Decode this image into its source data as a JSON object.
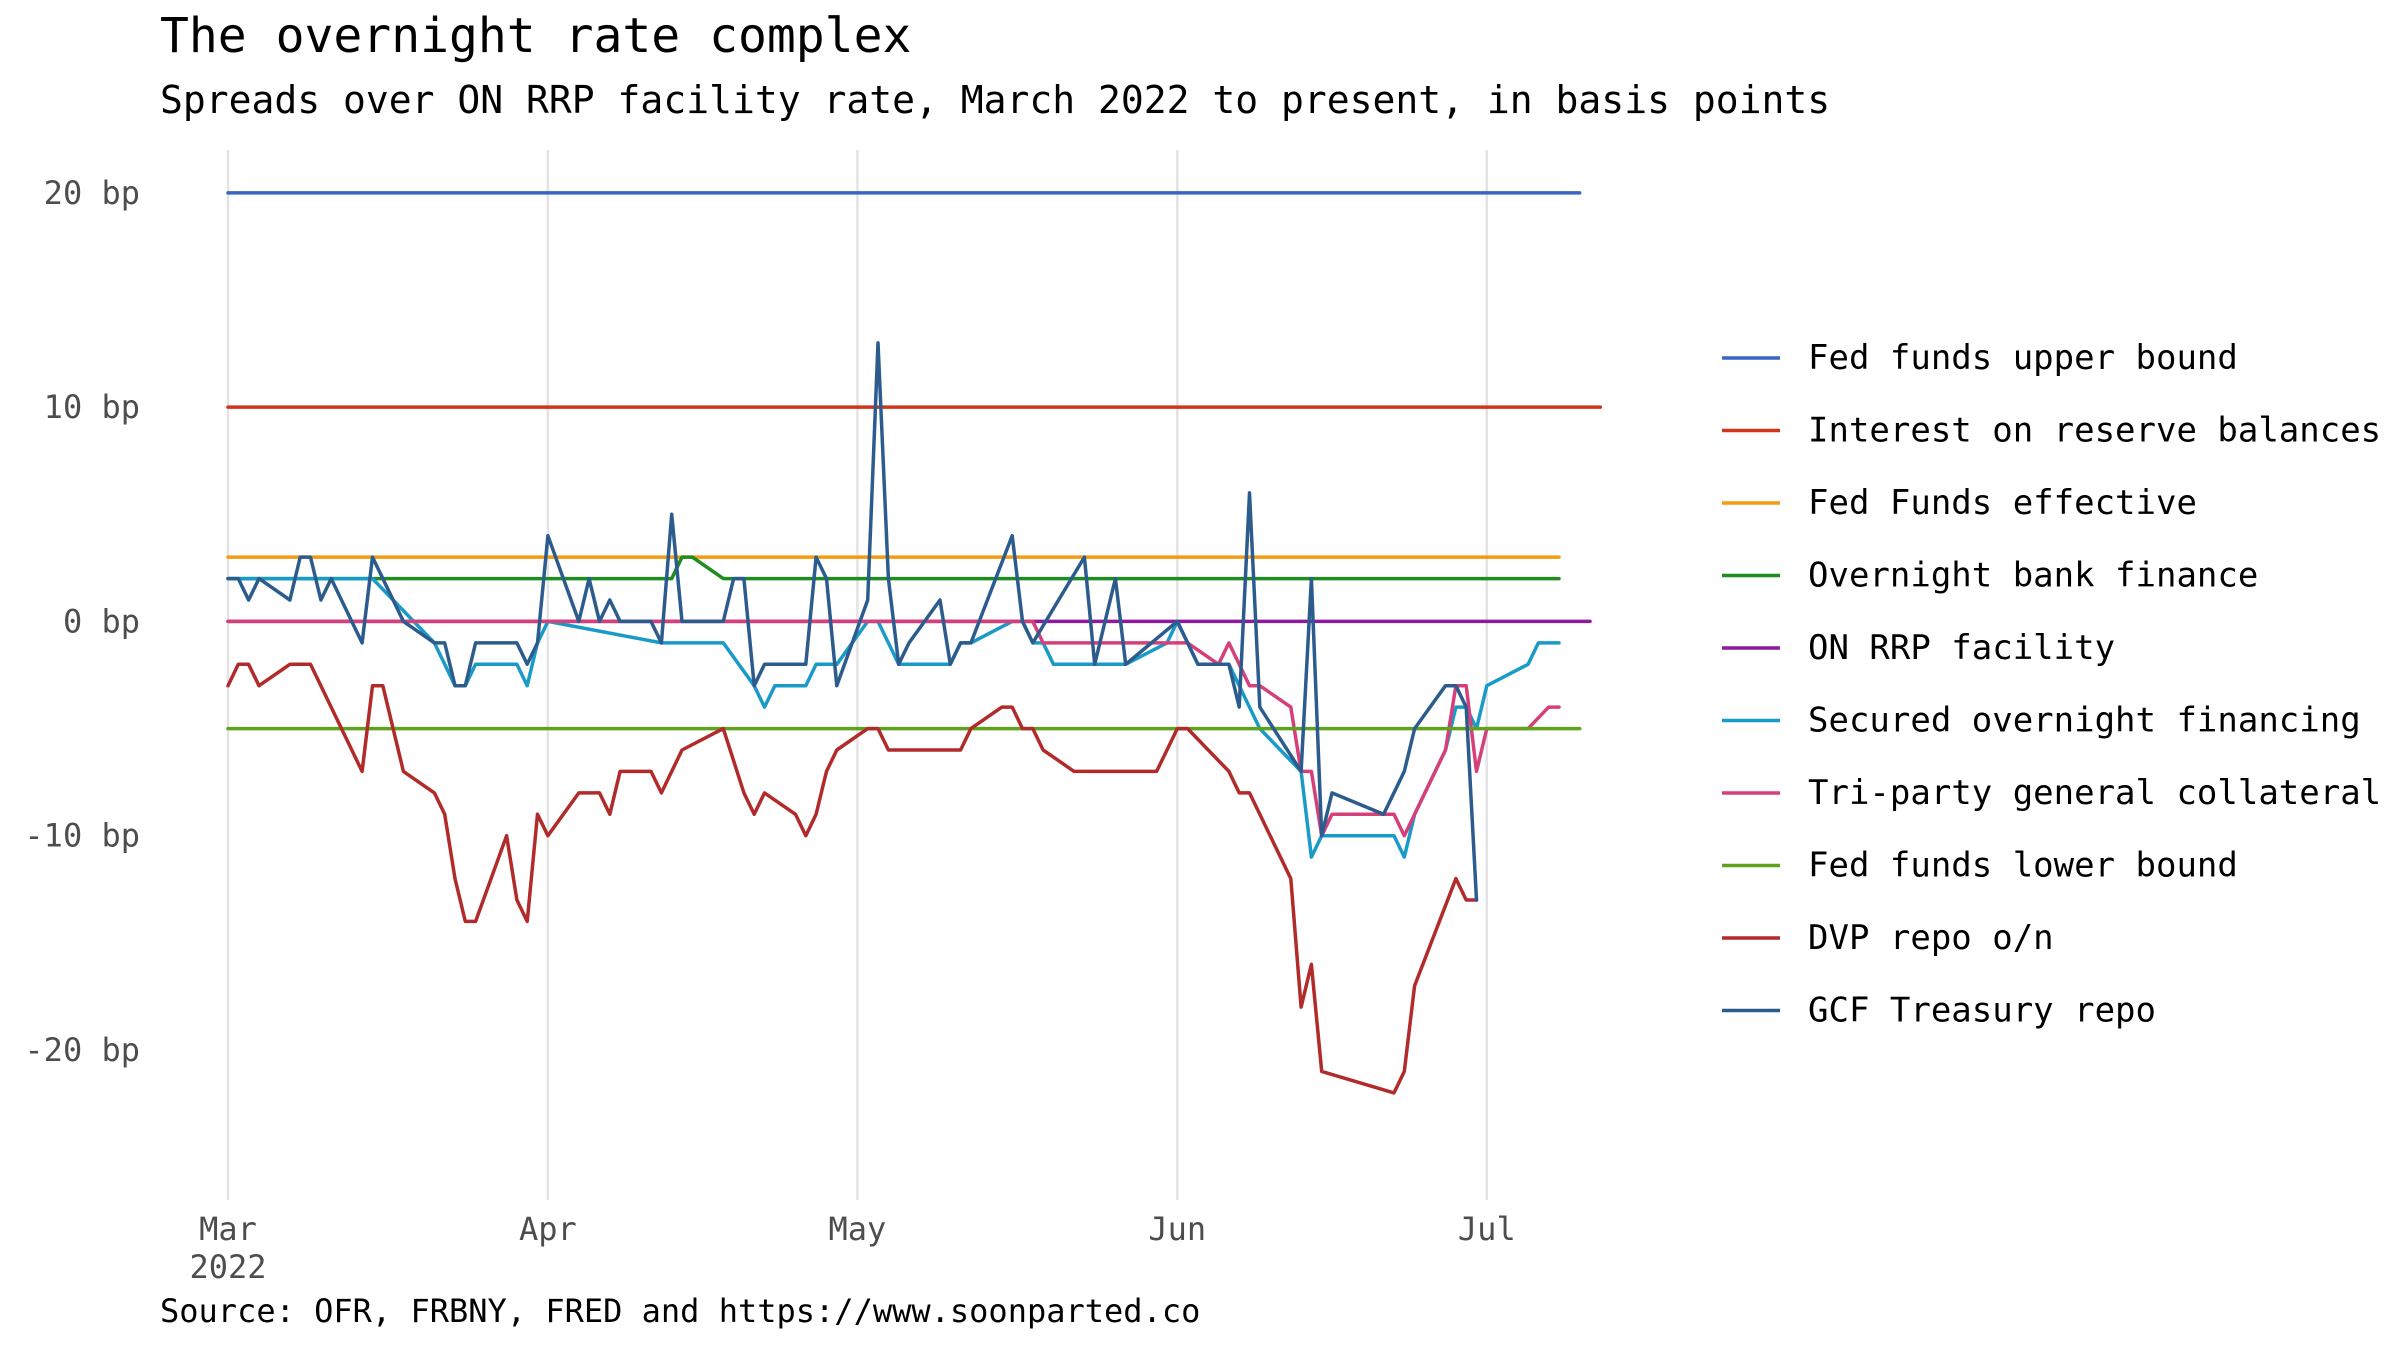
{
  "title": "The overnight rate complex",
  "subtitle": "Spreads over ON RRP facility rate, March 2022 to present, in basis points",
  "source": "Source: OFR, FRBNY, FRED and https://www.soonparted.co",
  "chart_data": {
    "type": "line",
    "title": "The overnight rate complex",
    "subtitle": "Spreads over ON RRP facility rate, March 2022 to present, in basis points",
    "xlabel": "",
    "ylabel": "",
    "x_axis": {
      "type": "date",
      "range": [
        "2022-03-01",
        "2022-07-11"
      ],
      "ticks": [
        {
          "date": "2022-03-01",
          "label": "Mar",
          "sublabel": "2022"
        },
        {
          "date": "2022-04-01",
          "label": "Apr",
          "sublabel": ""
        },
        {
          "date": "2022-05-01",
          "label": "May",
          "sublabel": ""
        },
        {
          "date": "2022-06-01",
          "label": "Jun",
          "sublabel": ""
        },
        {
          "date": "2022-07-01",
          "label": "Jul",
          "sublabel": ""
        }
      ]
    },
    "y_axis": {
      "range": [
        -27,
        22
      ],
      "ticks": [
        {
          "value": 20,
          "label": "20 bp"
        },
        {
          "value": 10,
          "label": "10 bp"
        },
        {
          "value": 0,
          "label": "0 bp"
        },
        {
          "value": -10,
          "label": "-10 bp"
        },
        {
          "value": -20,
          "label": "-20 bp"
        }
      ]
    },
    "grid": {
      "vertical": true,
      "horizontal": false
    },
    "legend_position": "right",
    "series": [
      {
        "name": "Fed funds upper bound",
        "color": "#3a66c4",
        "points": [
          [
            "2022-03-01",
            20
          ],
          [
            "2022-07-10",
            20
          ]
        ]
      },
      {
        "name": "Interest on reserve balances",
        "color": "#d1351b",
        "points": [
          [
            "2022-03-01",
            10
          ],
          [
            "2022-07-12",
            10
          ]
        ]
      },
      {
        "name": "Fed Funds effective",
        "color": "#f39c12",
        "points": [
          [
            "2022-03-01",
            3
          ],
          [
            "2022-07-08",
            3
          ]
        ]
      },
      {
        "name": "Overnight bank finance",
        "color": "#1e8c1e",
        "points": [
          [
            "2022-03-01",
            2
          ],
          [
            "2022-04-13",
            2
          ],
          [
            "2022-04-14",
            3
          ],
          [
            "2022-04-15",
            3
          ],
          [
            "2022-04-18",
            2
          ],
          [
            "2022-07-08",
            2
          ]
        ]
      },
      {
        "name": "ON RRP facility",
        "color": "#8e1a9c",
        "points": [
          [
            "2022-03-01",
            0
          ],
          [
            "2022-07-11",
            0
          ]
        ]
      },
      {
        "name": "Secured overnight financing",
        "color": "#1a9bc7",
        "points": [
          [
            "2022-03-01",
            2
          ],
          [
            "2022-03-15",
            2
          ],
          [
            "2022-03-21",
            -1
          ],
          [
            "2022-03-22",
            -2
          ],
          [
            "2022-03-23",
            -3
          ],
          [
            "2022-03-24",
            -3
          ],
          [
            "2022-03-25",
            -2
          ],
          [
            "2022-03-29",
            -2
          ],
          [
            "2022-03-30",
            -3
          ],
          [
            "2022-03-31",
            -1
          ],
          [
            "2022-04-01",
            0
          ],
          [
            "2022-04-12",
            -1
          ],
          [
            "2022-04-18",
            -1
          ],
          [
            "2022-04-21",
            -3
          ],
          [
            "2022-04-22",
            -4
          ],
          [
            "2022-04-23",
            -3
          ],
          [
            "2022-04-26",
            -3
          ],
          [
            "2022-04-27",
            -2
          ],
          [
            "2022-04-29",
            -2
          ],
          [
            "2022-05-02",
            0
          ],
          [
            "2022-05-03",
            0
          ],
          [
            "2022-05-04",
            -1
          ],
          [
            "2022-05-05",
            -2
          ],
          [
            "2022-05-10",
            -2
          ],
          [
            "2022-05-11",
            -1
          ],
          [
            "2022-05-12",
            -1
          ],
          [
            "2022-05-16",
            0
          ],
          [
            "2022-05-17",
            0
          ],
          [
            "2022-05-18",
            -1
          ],
          [
            "2022-05-19",
            -1
          ],
          [
            "2022-05-20",
            -2
          ],
          [
            "2022-05-27",
            -2
          ],
          [
            "2022-05-31",
            -1
          ],
          [
            "2022-06-01",
            0
          ],
          [
            "2022-06-02",
            -1
          ],
          [
            "2022-06-03",
            -2
          ],
          [
            "2022-06-06",
            -2
          ],
          [
            "2022-06-07",
            -3
          ],
          [
            "2022-06-09",
            -5
          ],
          [
            "2022-06-13",
            -7
          ],
          [
            "2022-06-14",
            -11
          ],
          [
            "2022-06-15",
            -10
          ],
          [
            "2022-06-22",
            -10
          ],
          [
            "2022-06-23",
            -11
          ],
          [
            "2022-06-24",
            -9
          ],
          [
            "2022-06-27",
            -6
          ],
          [
            "2022-06-28",
            -4
          ],
          [
            "2022-06-29",
            -4
          ],
          [
            "2022-06-30",
            -5
          ],
          [
            "2022-07-01",
            -3
          ],
          [
            "2022-07-05",
            -2
          ],
          [
            "2022-07-06",
            -1
          ],
          [
            "2022-07-08",
            -1
          ]
        ]
      },
      {
        "name": "Tri-party general collateral",
        "color": "#d6407a",
        "points": [
          [
            "2022-03-01",
            0
          ],
          [
            "2022-05-18",
            0
          ],
          [
            "2022-05-19",
            -1
          ],
          [
            "2022-05-27",
            -1
          ],
          [
            "2022-06-01",
            -1
          ],
          [
            "2022-06-02",
            -1
          ],
          [
            "2022-06-05",
            -2
          ],
          [
            "2022-06-06",
            -1
          ],
          [
            "2022-06-08",
            -3
          ],
          [
            "2022-06-09",
            -3
          ],
          [
            "2022-06-12",
            -4
          ],
          [
            "2022-06-13",
            -7
          ],
          [
            "2022-06-14",
            -7
          ],
          [
            "2022-06-15",
            -10
          ],
          [
            "2022-06-16",
            -9
          ],
          [
            "2022-06-22",
            -9
          ],
          [
            "2022-06-23",
            -10
          ],
          [
            "2022-06-27",
            -6
          ],
          [
            "2022-06-28",
            -3
          ],
          [
            "2022-06-29",
            -3
          ],
          [
            "2022-06-30",
            -7
          ],
          [
            "2022-07-01",
            -5
          ],
          [
            "2022-07-05",
            -5
          ],
          [
            "2022-07-07",
            -4
          ],
          [
            "2022-07-08",
            -4
          ]
        ]
      },
      {
        "name": "Fed funds lower bound",
        "color": "#5fa21e",
        "points": [
          [
            "2022-03-01",
            -5
          ],
          [
            "2022-07-10",
            -5
          ]
        ]
      },
      {
        "name": "DVP repo o/n",
        "color": "#b22b2b",
        "points": [
          [
            "2022-03-01",
            -3
          ],
          [
            "2022-03-02",
            -2
          ],
          [
            "2022-03-03",
            -2
          ],
          [
            "2022-03-04",
            -3
          ],
          [
            "2022-03-07",
            -2
          ],
          [
            "2022-03-09",
            -2
          ],
          [
            "2022-03-14",
            -7
          ],
          [
            "2022-03-15",
            -3
          ],
          [
            "2022-03-16",
            -3
          ],
          [
            "2022-03-18",
            -7
          ],
          [
            "2022-03-21",
            -8
          ],
          [
            "2022-03-22",
            -9
          ],
          [
            "2022-03-23",
            -12
          ],
          [
            "2022-03-24",
            -14
          ],
          [
            "2022-03-25",
            -14
          ],
          [
            "2022-03-28",
            -10
          ],
          [
            "2022-03-29",
            -13
          ],
          [
            "2022-03-30",
            -14
          ],
          [
            "2022-03-31",
            -9
          ],
          [
            "2022-04-01",
            -10
          ],
          [
            "2022-04-04",
            -8
          ],
          [
            "2022-04-05",
            -8
          ],
          [
            "2022-04-06",
            -8
          ],
          [
            "2022-04-07",
            -9
          ],
          [
            "2022-04-08",
            -7
          ],
          [
            "2022-04-11",
            -7
          ],
          [
            "2022-04-12",
            -8
          ],
          [
            "2022-04-14",
            -6
          ],
          [
            "2022-04-18",
            -5
          ],
          [
            "2022-04-20",
            -8
          ],
          [
            "2022-04-21",
            -9
          ],
          [
            "2022-04-22",
            -8
          ],
          [
            "2022-04-25",
            -9
          ],
          [
            "2022-04-26",
            -10
          ],
          [
            "2022-04-27",
            -9
          ],
          [
            "2022-04-28",
            -7
          ],
          [
            "2022-04-29",
            -6
          ],
          [
            "2022-05-02",
            -5
          ],
          [
            "2022-05-03",
            -5
          ],
          [
            "2022-05-04",
            -6
          ],
          [
            "2022-05-11",
            -6
          ],
          [
            "2022-05-12",
            -5
          ],
          [
            "2022-05-15",
            -4
          ],
          [
            "2022-05-16",
            -4
          ],
          [
            "2022-05-17",
            -5
          ],
          [
            "2022-05-18",
            -5
          ],
          [
            "2022-05-19",
            -6
          ],
          [
            "2022-05-22",
            -7
          ],
          [
            "2022-05-30",
            -7
          ],
          [
            "2022-05-31",
            -6
          ],
          [
            "2022-06-01",
            -5
          ],
          [
            "2022-06-02",
            -5
          ],
          [
            "2022-06-06",
            -7
          ],
          [
            "2022-06-07",
            -8
          ],
          [
            "2022-06-08",
            -8
          ],
          [
            "2022-06-12",
            -12
          ],
          [
            "2022-06-13",
            -18
          ],
          [
            "2022-06-14",
            -16
          ],
          [
            "2022-06-15",
            -21
          ],
          [
            "2022-06-22",
            -22
          ],
          [
            "2022-06-23",
            -21
          ],
          [
            "2022-06-24",
            -17
          ],
          [
            "2022-06-28",
            -12
          ],
          [
            "2022-06-29",
            -13
          ],
          [
            "2022-06-30",
            -13
          ]
        ]
      },
      {
        "name": "GCF Treasury repo",
        "color": "#2c5c8e",
        "points": [
          [
            "2022-03-01",
            2
          ],
          [
            "2022-03-02",
            2
          ],
          [
            "2022-03-03",
            1
          ],
          [
            "2022-03-04",
            2
          ],
          [
            "2022-03-07",
            1
          ],
          [
            "2022-03-08",
            3
          ],
          [
            "2022-03-09",
            3
          ],
          [
            "2022-03-10",
            1
          ],
          [
            "2022-03-11",
            2
          ],
          [
            "2022-03-14",
            -1
          ],
          [
            "2022-03-15",
            3
          ],
          [
            "2022-03-18",
            0
          ],
          [
            "2022-03-21",
            -1
          ],
          [
            "2022-03-22",
            -1
          ],
          [
            "2022-03-23",
            -3
          ],
          [
            "2022-03-24",
            -3
          ],
          [
            "2022-03-25",
            -1
          ],
          [
            "2022-03-29",
            -1
          ],
          [
            "2022-03-30",
            -2
          ],
          [
            "2022-03-31",
            -1
          ],
          [
            "2022-04-01",
            4
          ],
          [
            "2022-04-04",
            0
          ],
          [
            "2022-04-05",
            2
          ],
          [
            "2022-04-06",
            0
          ],
          [
            "2022-04-07",
            1
          ],
          [
            "2022-04-08",
            0
          ],
          [
            "2022-04-11",
            0
          ],
          [
            "2022-04-12",
            -1
          ],
          [
            "2022-04-13",
            5
          ],
          [
            "2022-04-14",
            0
          ],
          [
            "2022-04-18",
            0
          ],
          [
            "2022-04-19",
            2
          ],
          [
            "2022-04-20",
            2
          ],
          [
            "2022-04-21",
            -3
          ],
          [
            "2022-04-22",
            -2
          ],
          [
            "2022-04-26",
            -2
          ],
          [
            "2022-04-27",
            3
          ],
          [
            "2022-04-28",
            2
          ],
          [
            "2022-04-29",
            -3
          ],
          [
            "2022-05-02",
            1
          ],
          [
            "2022-05-03",
            13
          ],
          [
            "2022-05-04",
            2
          ],
          [
            "2022-05-05",
            -2
          ],
          [
            "2022-05-06",
            -1
          ],
          [
            "2022-05-09",
            1
          ],
          [
            "2022-05-10",
            -2
          ],
          [
            "2022-05-11",
            -1
          ],
          [
            "2022-05-12",
            -1
          ],
          [
            "2022-05-16",
            4
          ],
          [
            "2022-05-17",
            0
          ],
          [
            "2022-05-18",
            -1
          ],
          [
            "2022-05-23",
            3
          ],
          [
            "2022-05-24",
            -2
          ],
          [
            "2022-05-26",
            2
          ],
          [
            "2022-05-27",
            -2
          ],
          [
            "2022-06-01",
            0
          ],
          [
            "2022-06-03",
            -2
          ],
          [
            "2022-06-06",
            -2
          ],
          [
            "2022-06-07",
            -4
          ],
          [
            "2022-06-08",
            6
          ],
          [
            "2022-06-09",
            -4
          ],
          [
            "2022-06-13",
            -7
          ],
          [
            "2022-06-14",
            2
          ],
          [
            "2022-06-15",
            -10
          ],
          [
            "2022-06-16",
            -8
          ],
          [
            "2022-06-21",
            -9
          ],
          [
            "2022-06-23",
            -7
          ],
          [
            "2022-06-24",
            -5
          ],
          [
            "2022-06-27",
            -3
          ],
          [
            "2022-06-28",
            -3
          ],
          [
            "2022-06-29",
            -4
          ],
          [
            "2022-06-30",
            -13
          ]
        ]
      }
    ]
  }
}
